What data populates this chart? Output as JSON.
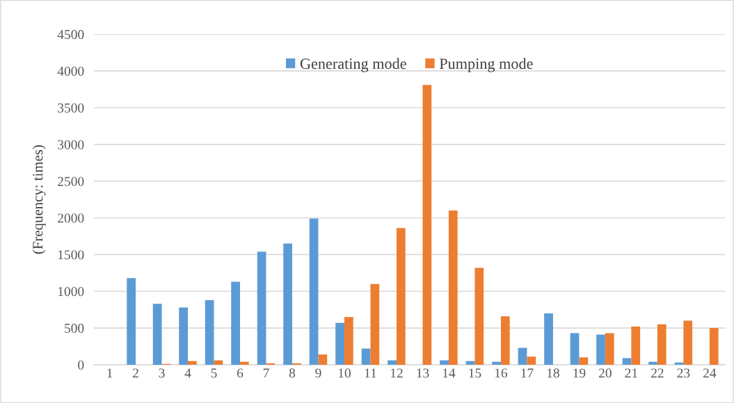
{
  "chart_data": {
    "type": "bar",
    "ylabel": "(Frequency: times)",
    "categories": [
      "1",
      "2",
      "3",
      "4",
      "5",
      "6",
      "7",
      "8",
      "9",
      "10",
      "11",
      "12",
      "13",
      "14",
      "15",
      "16",
      "17",
      "18",
      "19",
      "20",
      "21",
      "22",
      "23",
      "24"
    ],
    "series": [
      {
        "name": "Generating mode",
        "color": "#5b9bd5",
        "values": [
          0,
          1180,
          830,
          780,
          880,
          1130,
          1540,
          1650,
          1990,
          570,
          220,
          60,
          0,
          60,
          50,
          40,
          230,
          700,
          430,
          410,
          90,
          40,
          30,
          0
        ]
      },
      {
        "name": "Pumping mode",
        "color": "#ed7d31",
        "values": [
          0,
          0,
          10,
          50,
          60,
          40,
          20,
          20,
          140,
          650,
          1100,
          1860,
          3810,
          2100,
          1320,
          660,
          110,
          0,
          100,
          430,
          520,
          550,
          600,
          500
        ]
      }
    ],
    "ylim": [
      0,
      4500
    ],
    "yticks": [
      0,
      500,
      1000,
      1500,
      2000,
      2500,
      3000,
      3500,
      4000,
      4500
    ],
    "grid": "y",
    "legend": "top"
  }
}
